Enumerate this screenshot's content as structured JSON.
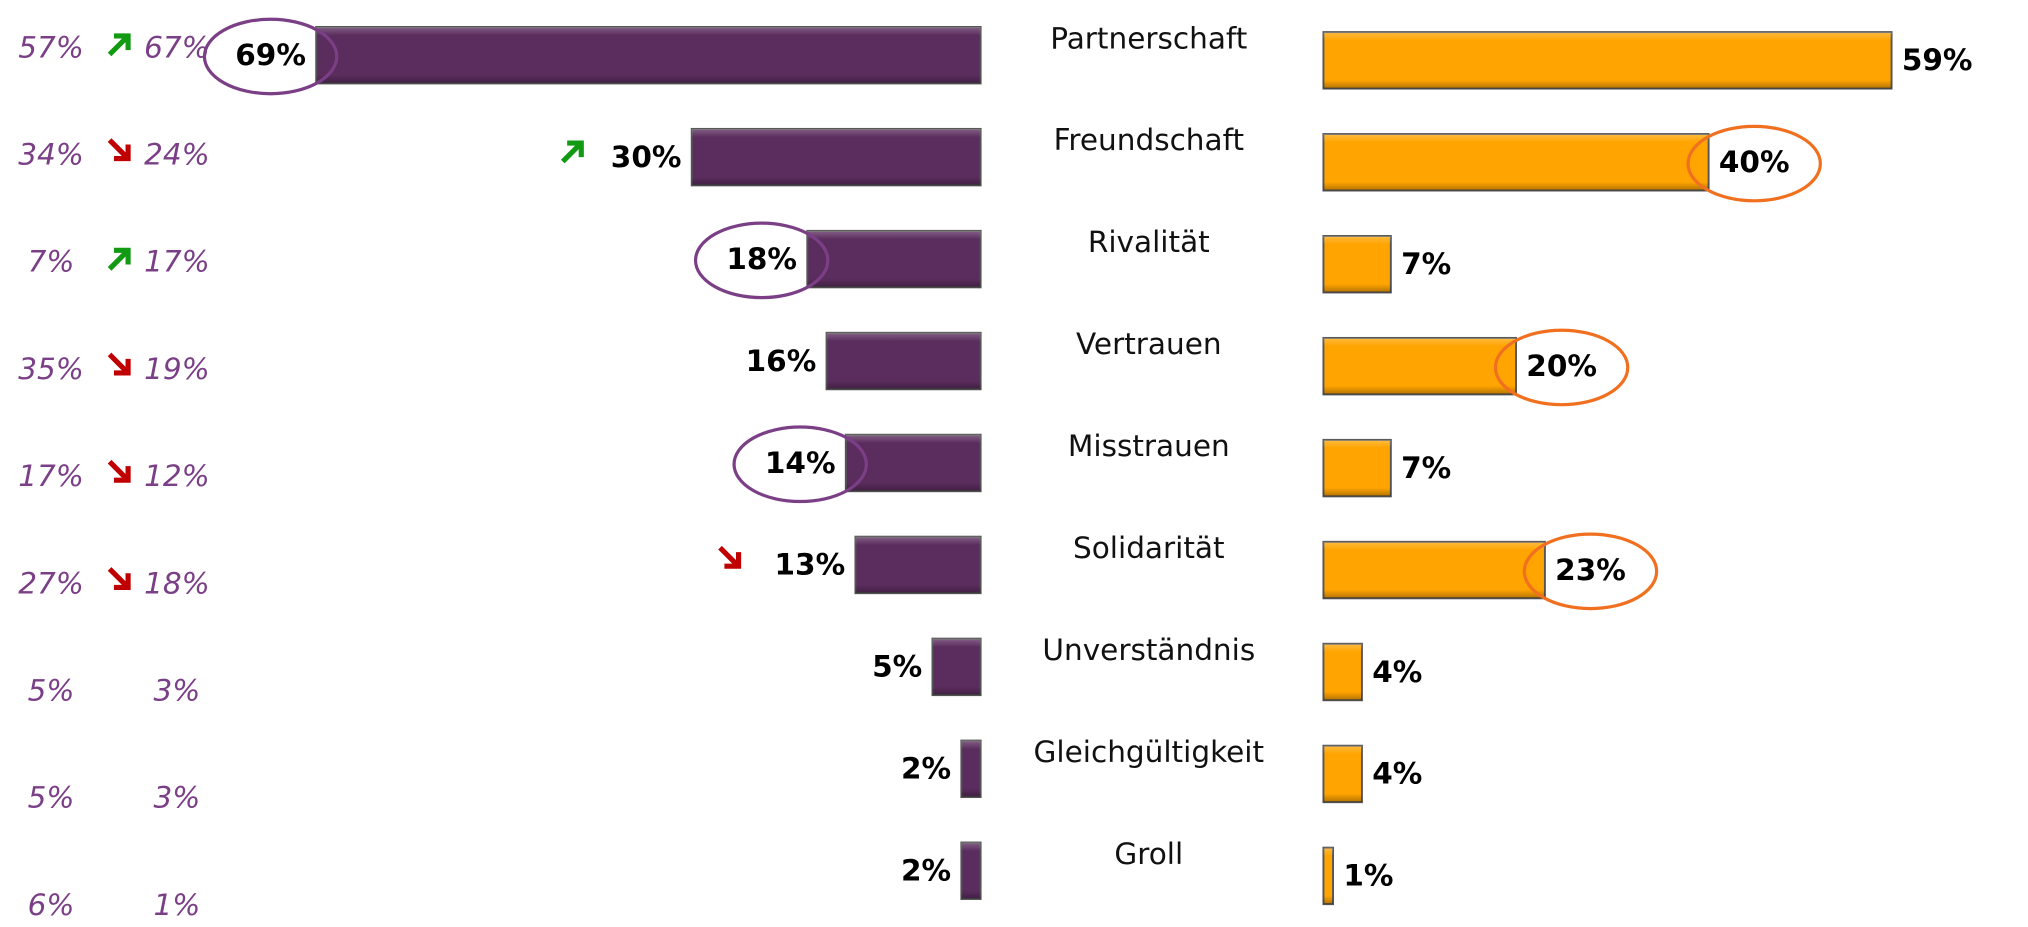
{
  "chart_data": {
    "type": "butterfly",
    "categories": [
      "Partnerschaft",
      "Freundschaft",
      "Rivalität",
      "Vertrauen",
      "Misstrauen",
      "Solidarität",
      "Unverständnis",
      "Gleichgültigkeit",
      "Groll"
    ],
    "series": [
      {
        "color": "#5b2c5e",
        "side": "left",
        "values": [
          69,
          30,
          18,
          16,
          14,
          13,
          5,
          2,
          2
        ],
        "value_labels": [
          "69%",
          "30%",
          "18%",
          "16%",
          "14%",
          "13%",
          "5%",
          "2%",
          "2%"
        ],
        "highlight": [
          true,
          false,
          true,
          false,
          true,
          false,
          false,
          false,
          false
        ],
        "label_trends": [
          null,
          "up",
          null,
          null,
          null,
          "down",
          null,
          null,
          null
        ],
        "highlight_color": "#7b3f86"
      },
      {
        "color": "#ffa400",
        "side": "right",
        "values": [
          59,
          40,
          7,
          20,
          7,
          23,
          4,
          4,
          1
        ],
        "value_labels": [
          "59%",
          "40%",
          "7%",
          "20%",
          "7%",
          "23%",
          "4%",
          "4%",
          "1%"
        ],
        "highlight": [
          false,
          true,
          false,
          true,
          false,
          true,
          false,
          false,
          false
        ],
        "highlight_color": "#f07020"
      }
    ],
    "columns": [
      {
        "values": [
          57,
          34,
          7,
          35,
          17,
          27,
          5,
          5,
          6
        ],
        "value_labels": [
          "57%",
          "34%",
          "7%",
          "35%",
          "17%",
          "27%",
          "5%",
          "5%",
          "6%"
        ]
      },
      {
        "values": [
          67,
          24,
          17,
          19,
          12,
          18,
          3,
          3,
          1
        ],
        "value_labels": [
          "67%",
          "24%",
          "17%",
          "19%",
          "12%",
          "18%",
          "3%",
          "3%",
          "1%"
        ]
      }
    ],
    "trends": [
      "up",
      "down",
      "up",
      "down",
      "down",
      "down",
      null,
      null,
      null
    ],
    "trend_colors": {
      "up": "#139a13",
      "down": "#c00000"
    }
  }
}
